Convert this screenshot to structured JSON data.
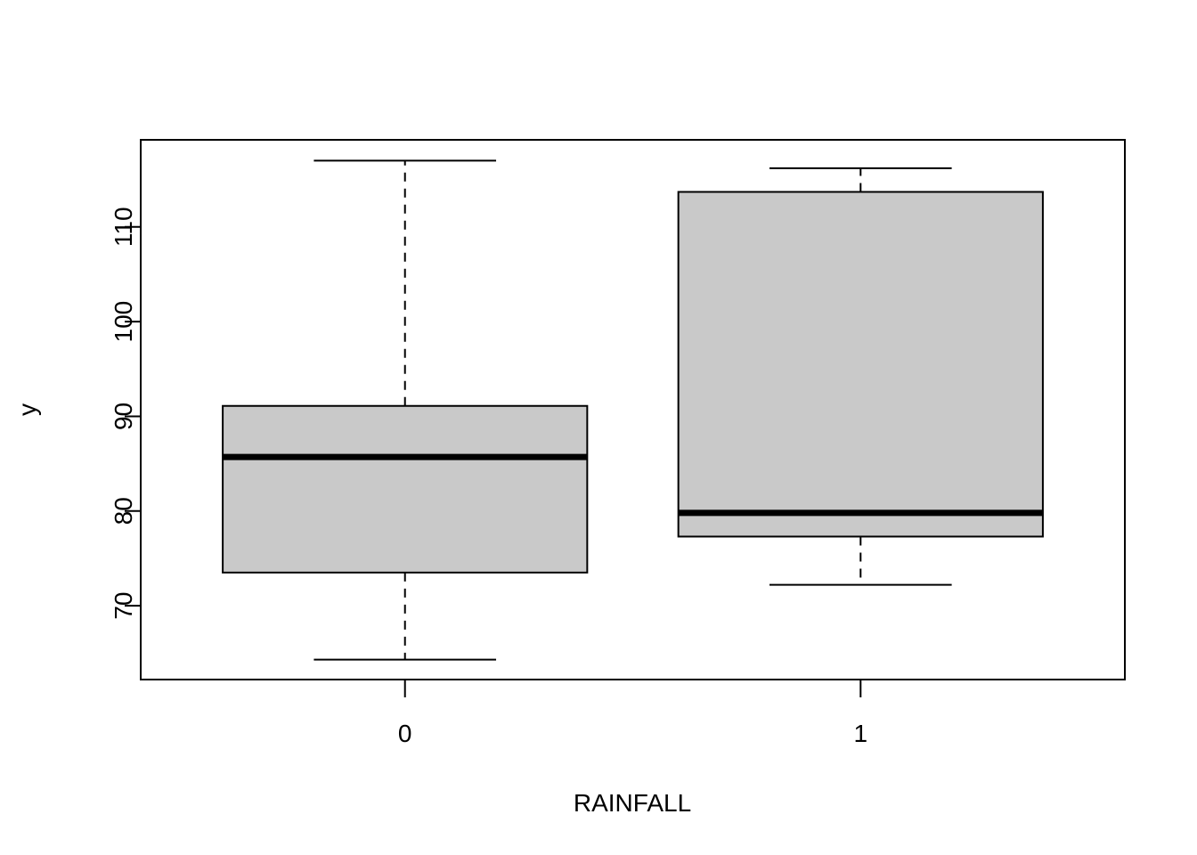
{
  "chart_data": {
    "type": "boxplot",
    "xlabel": "RAINFALL",
    "ylabel": "y",
    "categories": [
      "0",
      "1"
    ],
    "boxes": [
      {
        "category": "0",
        "min": 64.3,
        "q1": 73.5,
        "median": 85.7,
        "q3": 91.1,
        "max": 117.0
      },
      {
        "category": "1",
        "min": 72.2,
        "q1": 77.3,
        "median": 79.8,
        "q3": 113.7,
        "max": 116.2
      }
    ],
    "ylim": [
      62.2,
      119.2
    ],
    "y_ticks": [
      70,
      80,
      90,
      100,
      110
    ],
    "y_tick_labels": [
      "70",
      "80",
      "90",
      "100",
      "110"
    ],
    "grid": false,
    "box_fill": "#c9c9c9",
    "line_color": "#000000"
  }
}
